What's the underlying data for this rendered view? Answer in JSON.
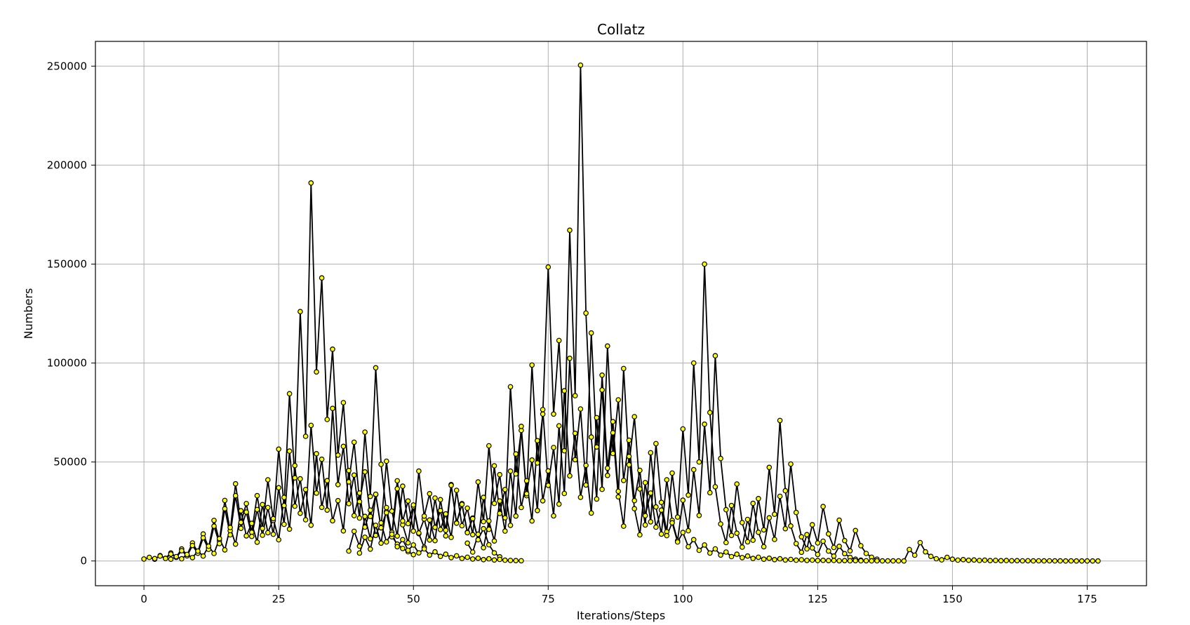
{
  "chart_data": {
    "type": "line",
    "title": "Collatz",
    "xlabel": "Iterations/Steps",
    "ylabel": "Numbers",
    "xlim": [
      -9,
      186
    ],
    "ylim": [
      -12500,
      262500
    ],
    "x_ticks": [
      0,
      25,
      50,
      75,
      100,
      125,
      150,
      175
    ],
    "y_ticks": [
      0,
      50000,
      100000,
      150000,
      200000,
      250000
    ],
    "x_tick_labels": [
      "0",
      "25",
      "50",
      "75",
      "100",
      "125",
      "150",
      "175"
    ],
    "y_tick_labels": [
      "0",
      "50000",
      "100000",
      "150000",
      "200000",
      "250000"
    ],
    "grid": true,
    "line_color": "#000000",
    "marker_face_color": "#ffff00",
    "marker_edge_color": "#000000",
    "series": [
      {
        "x": [
          0,
          1,
          2,
          3,
          4,
          5,
          6,
          7,
          8,
          9,
          10,
          11,
          12,
          13,
          14,
          15,
          16,
          17,
          18,
          19,
          20,
          21,
          22,
          23,
          24,
          25,
          26,
          27,
          28,
          29,
          30,
          31,
          32,
          33,
          34,
          35,
          36,
          37,
          38,
          39,
          40,
          41,
          42,
          43,
          44,
          45,
          46,
          47,
          48,
          49,
          50
        ],
        "y": [
          1000,
          1800,
          900,
          2700,
          1350,
          4050,
          2025,
          6075,
          3040,
          9100,
          4550,
          13650,
          6800,
          20500,
          10200,
          30600,
          15300,
          39000,
          19500,
          29000,
          14500,
          33000,
          16500,
          41000,
          20500,
          56500,
          28000,
          84500,
          42000,
          126000,
          63000,
          191000,
          95500,
          143000,
          71500,
          107000,
          53500,
          80000,
          40000,
          60000,
          30000,
          45000,
          22500,
          33500,
          16700,
          25000,
          12500,
          8500,
          6300,
          4700,
          3200
        ]
      },
      {
        "x": [
          2,
          3,
          4,
          5,
          6,
          7,
          8,
          9,
          10,
          11,
          12,
          13,
          14,
          15,
          16,
          17,
          18,
          19,
          20,
          21,
          22,
          23,
          24,
          25,
          26,
          27,
          28,
          29,
          30,
          31,
          32,
          33,
          34,
          35,
          36,
          37,
          38,
          39,
          40,
          41,
          42,
          43,
          44,
          45,
          46,
          47,
          48,
          49,
          50,
          51,
          52,
          53,
          54,
          55,
          56,
          57,
          58,
          59,
          60,
          61,
          62,
          63,
          64,
          65,
          66
        ],
        "y": [
          1200,
          2500,
          1300,
          3500,
          1800,
          5200,
          2600,
          7800,
          3900,
          11700,
          5900,
          17600,
          8800,
          26400,
          13200,
          33000,
          16500,
          24700,
          12400,
          26000,
          13000,
          27000,
          13500,
          37000,
          18500,
          55500,
          27700,
          41500,
          20800,
          68500,
          34300,
          51400,
          25700,
          77100,
          38600,
          57900,
          29000,
          43400,
          21700,
          65100,
          32600,
          97600,
          48800,
          24400,
          12200,
          36500,
          18300,
          9200,
          27500,
          13800,
          6900,
          20700,
          10300,
          31000,
          15500,
          38600,
          19300,
          29000,
          14500,
          21700,
          10900,
          16300,
          8200,
          4100,
          2100
        ]
      },
      {
        "x": [
          5,
          6,
          7,
          8,
          9,
          10,
          11,
          12,
          13,
          14,
          15,
          16,
          17,
          18,
          19,
          20,
          21,
          22,
          23,
          24,
          25,
          26,
          27,
          28,
          29,
          30,
          31,
          32,
          33,
          34,
          35,
          36,
          37,
          38,
          39,
          40,
          41,
          42,
          43,
          44,
          45,
          46,
          47,
          48,
          49,
          50,
          51,
          52,
          53,
          54,
          55,
          56,
          57,
          58,
          59,
          60,
          61,
          62,
          63,
          64,
          65,
          66,
          67,
          68,
          69,
          70
        ],
        "y": [
          900,
          2200,
          1100,
          3300,
          1700,
          5000,
          2500,
          7500,
          3800,
          11300,
          5600,
          16900,
          8500,
          25400,
          12700,
          19000,
          9500,
          28500,
          14300,
          21400,
          10700,
          32100,
          16100,
          48200,
          24100,
          36100,
          18100,
          54200,
          27100,
          40600,
          20300,
          30500,
          15200,
          45700,
          22900,
          34300,
          17100,
          25700,
          12900,
          19300,
          9600,
          14500,
          7200,
          10800,
          5400,
          8100,
          4100,
          6100,
          3000,
          4600,
          2300,
          3400,
          1700,
          2600,
          1300,
          1900,
          1000,
          1400,
          700,
          1100,
          500,
          800,
          400,
          300,
          200,
          100
        ]
      },
      {
        "x": [
          38,
          39,
          40,
          41,
          42,
          43,
          44,
          45,
          46,
          47,
          48,
          49,
          50,
          51,
          52,
          53,
          54,
          55,
          56,
          57,
          58,
          59,
          60,
          61,
          62,
          63,
          64,
          65,
          66,
          67,
          68,
          69,
          70,
          71,
          72,
          73,
          74,
          75,
          76,
          77,
          78,
          79,
          80,
          81,
          82,
          83,
          84,
          85,
          86,
          87,
          88,
          89,
          90,
          91,
          92,
          93,
          94,
          95,
          96,
          97,
          98,
          99,
          100,
          101,
          102,
          103,
          104,
          105,
          106,
          107,
          108,
          109,
          110,
          111,
          112,
          113,
          114,
          115,
          116,
          117,
          118,
          119,
          120,
          121,
          122,
          123,
          124,
          125,
          126,
          127,
          128,
          129,
          130,
          131,
          132,
          133
        ],
        "y": [
          5000,
          15000,
          7500,
          22500,
          11200,
          33700,
          16800,
          50400,
          25200,
          12600,
          37800,
          18900,
          28300,
          14100,
          21200,
          10600,
          31800,
          15900,
          23800,
          11900,
          35700,
          17800,
          26700,
          13300,
          39900,
          19900,
          58200,
          29100,
          43600,
          21800,
          88000,
          44000,
          66000,
          33000,
          99000,
          49500,
          74200,
          148500,
          74200,
          111400,
          55700,
          167100,
          83500,
          250500,
          125200,
          62600,
          31300,
          93900,
          46900,
          70400,
          35200,
          17600,
          52800,
          26400,
          13200,
          39600,
          19800,
          59300,
          29600,
          14800,
          44400,
          22200,
          66700,
          33300,
          100000,
          50000,
          150000,
          75000,
          37500,
          18700,
          9300,
          28000,
          14000,
          7000,
          21000,
          10500,
          31500,
          15700,
          47300,
          23600,
          71000,
          35500,
          17700,
          8800,
          4400,
          13300,
          6600,
          3300,
          10000,
          5000,
          2500,
          7400,
          3700,
          1800,
          900,
          400
        ]
      },
      {
        "x": [
          40,
          41,
          42,
          43,
          44,
          45,
          46,
          47,
          48,
          49,
          50,
          51,
          52,
          53,
          54,
          55,
          56,
          57,
          58,
          59,
          60,
          61,
          62,
          63,
          64,
          65,
          66,
          67,
          68,
          69,
          70,
          71,
          72,
          73,
          74,
          75,
          76,
          77,
          78,
          79,
          80,
          81,
          82,
          83,
          84,
          85,
          86,
          87,
          88,
          89,
          90,
          91,
          92,
          93,
          94,
          95,
          96,
          97,
          98,
          99,
          100,
          101,
          102,
          103,
          104,
          105,
          106,
          107,
          108,
          109,
          110,
          111,
          112,
          113,
          114,
          115,
          116,
          117,
          118,
          119,
          120,
          121,
          122,
          123,
          124,
          125,
          126,
          127,
          128,
          129,
          130,
          131,
          132,
          133,
          134,
          135,
          136
        ],
        "y": [
          4000,
          12000,
          6000,
          18000,
          9000,
          27000,
          13500,
          40500,
          20200,
          30300,
          15100,
          45400,
          22700,
          34000,
          17000,
          25500,
          12700,
          38200,
          19100,
          28600,
          14300,
          21400,
          10700,
          32100,
          16000,
          48100,
          24000,
          36100,
          18000,
          54100,
          27000,
          40500,
          20200,
          60800,
          30400,
          45500,
          22800,
          68300,
          34100,
          102400,
          51200,
          76800,
          38400,
          115200,
          57600,
          86400,
          43200,
          64800,
          32400,
          97200,
          48600,
          72900,
          36400,
          18200,
          54700,
          27300,
          13600,
          41000,
          20500,
          10200,
          30700,
          15300,
          46100,
          23000,
          69100,
          34500,
          103700,
          51800,
          25900,
          12900,
          38900,
          19400,
          9700,
          29100,
          14500,
          7200,
          21800,
          10900,
          32700,
          16300,
          49000,
          24500,
          12200,
          6100,
          18300,
          9100,
          27500,
          13700,
          6800,
          20600,
          10300,
          5100,
          15400,
          7700,
          3800,
          1900,
          900
        ]
      },
      {
        "x": [
          60,
          61,
          62,
          63,
          64,
          65,
          66,
          67,
          68,
          69,
          70,
          71,
          72,
          73,
          74,
          75,
          76,
          77,
          78,
          79,
          80,
          81,
          82,
          83,
          84,
          85,
          86,
          87,
          88,
          89,
          90,
          91,
          92,
          93,
          94,
          95,
          96,
          97,
          98,
          99,
          100,
          101,
          102,
          103,
          104,
          105,
          106,
          107,
          108,
          109,
          110,
          111,
          112,
          113,
          114,
          115,
          116,
          117,
          118,
          119,
          120,
          121,
          122,
          123,
          124,
          125,
          126,
          127,
          128,
          129,
          130,
          131,
          132,
          133,
          134,
          135,
          136,
          137,
          138,
          139,
          140,
          141,
          142,
          143,
          144,
          145,
          146,
          147,
          148,
          149,
          150,
          151,
          152,
          153,
          154,
          155,
          156,
          157,
          158,
          159,
          160,
          161,
          162,
          163,
          164,
          165,
          166,
          167,
          168,
          169,
          170,
          171,
          172,
          173,
          174,
          175,
          176,
          177
        ],
        "y": [
          9000,
          4500,
          13500,
          6700,
          20200,
          10100,
          30300,
          15100,
          45400,
          22700,
          68000,
          34000,
          51000,
          25500,
          76500,
          38200,
          57300,
          28700,
          86000,
          43000,
          64500,
          32200,
          48300,
          24200,
          72400,
          36200,
          108600,
          54300,
          81400,
          40700,
          61000,
          30500,
          45800,
          22900,
          34300,
          17100,
          25700,
          12800,
          19300,
          9600,
          14400,
          7200,
          10800,
          5400,
          8100,
          4000,
          6100,
          3000,
          4500,
          2200,
          3400,
          1700,
          2500,
          1300,
          1900,
          900,
          1400,
          700,
          1100,
          500,
          800,
          400,
          600,
          300,
          450,
          220,
          340,
          170,
          250,
          130,
          190,
          95,
          140,
          70,
          100,
          50,
          80,
          40,
          60,
          30,
          45,
          25,
          5800,
          2900,
          9300,
          4600,
          2300,
          1150,
          580,
          1800,
          900,
          450,
          700,
          350,
          520,
          260,
          390,
          200,
          290,
          150,
          220,
          110,
          160,
          80,
          120,
          60,
          90,
          45,
          70,
          35,
          50,
          25,
          40,
          20,
          10,
          5,
          2,
          1
        ]
      }
    ]
  }
}
